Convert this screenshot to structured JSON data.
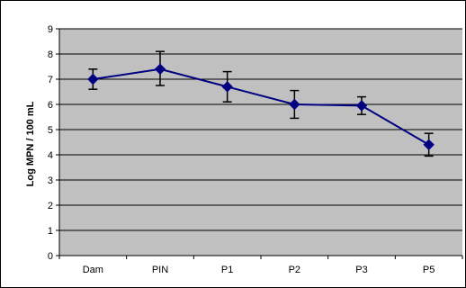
{
  "chart_data": {
    "type": "line",
    "title": "",
    "xlabel": "",
    "ylabel": "Log MPN / 100 mL",
    "categories": [
      "Dam",
      "PIN",
      "P1",
      "P2",
      "P3",
      "P5"
    ],
    "series": [
      {
        "values": [
          7.0,
          7.4,
          6.7,
          6.0,
          5.95,
          4.4
        ],
        "error_low": [
          6.6,
          6.75,
          6.1,
          5.45,
          5.6,
          3.95
        ],
        "error_high": [
          7.4,
          8.1,
          7.3,
          6.55,
          6.3,
          4.85
        ],
        "color": "#000080",
        "marker": "diamond"
      }
    ],
    "ylim": [
      0,
      9
    ],
    "yticks": [
      "0",
      "1",
      "2",
      "3",
      "4",
      "5",
      "6",
      "7",
      "8",
      "9"
    ],
    "grid": true,
    "plot_background": "#c0c0c0",
    "legend": "none"
  }
}
